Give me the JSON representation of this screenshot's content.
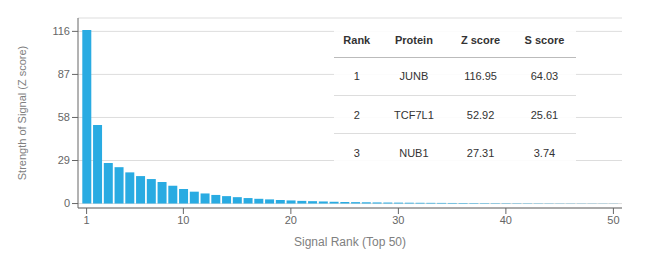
{
  "chart_data": {
    "type": "bar",
    "xlabel": "Signal Rank (Top 50)",
    "ylabel": "Strength of Signal (Z score)",
    "color": "#29ABE2",
    "x": [
      1,
      2,
      3,
      4,
      5,
      6,
      7,
      8,
      9,
      10,
      11,
      12,
      13,
      14,
      15,
      16,
      17,
      18,
      19,
      20,
      21,
      22,
      23,
      24,
      25,
      26,
      27,
      28,
      29,
      30,
      31,
      32,
      33,
      34,
      35,
      36,
      37,
      38,
      39,
      40,
      41,
      42,
      43,
      44,
      45,
      46,
      47,
      48,
      49,
      50
    ],
    "values": [
      116.95,
      52.92,
      27.31,
      24.5,
      21.0,
      18.5,
      16.5,
      14.5,
      12.0,
      9.8,
      8.0,
      6.8,
      5.8,
      5.0,
      4.3,
      3.7,
      3.2,
      2.8,
      2.4,
      2.1,
      1.8,
      1.6,
      1.4,
      1.2,
      1.05,
      0.95,
      0.85,
      0.75,
      0.68,
      0.62,
      0.56,
      0.51,
      0.47,
      0.43,
      0.39,
      0.36,
      0.33,
      0.3,
      0.27,
      0.25,
      0.23,
      0.21,
      0.19,
      0.17,
      0.15,
      0.14,
      0.13,
      0.12,
      0.11,
      0.1
    ],
    "xlim": [
      0.2,
      50.8
    ],
    "ylim": [
      -3,
      125
    ],
    "xticks": [
      1,
      10,
      20,
      30,
      40,
      50
    ],
    "yticks": [
      0,
      29,
      58,
      87,
      116
    ],
    "grid": true,
    "table": {
      "headers": [
        "Rank",
        "Protein",
        "Z score",
        "S score"
      ],
      "rows": [
        [
          "1",
          "JUNB",
          "116.95",
          "64.03"
        ],
        [
          "2",
          "TCF7L1",
          "52.92",
          "25.61"
        ],
        [
          "3",
          "NUB1",
          "27.31",
          "3.74"
        ]
      ]
    }
  }
}
